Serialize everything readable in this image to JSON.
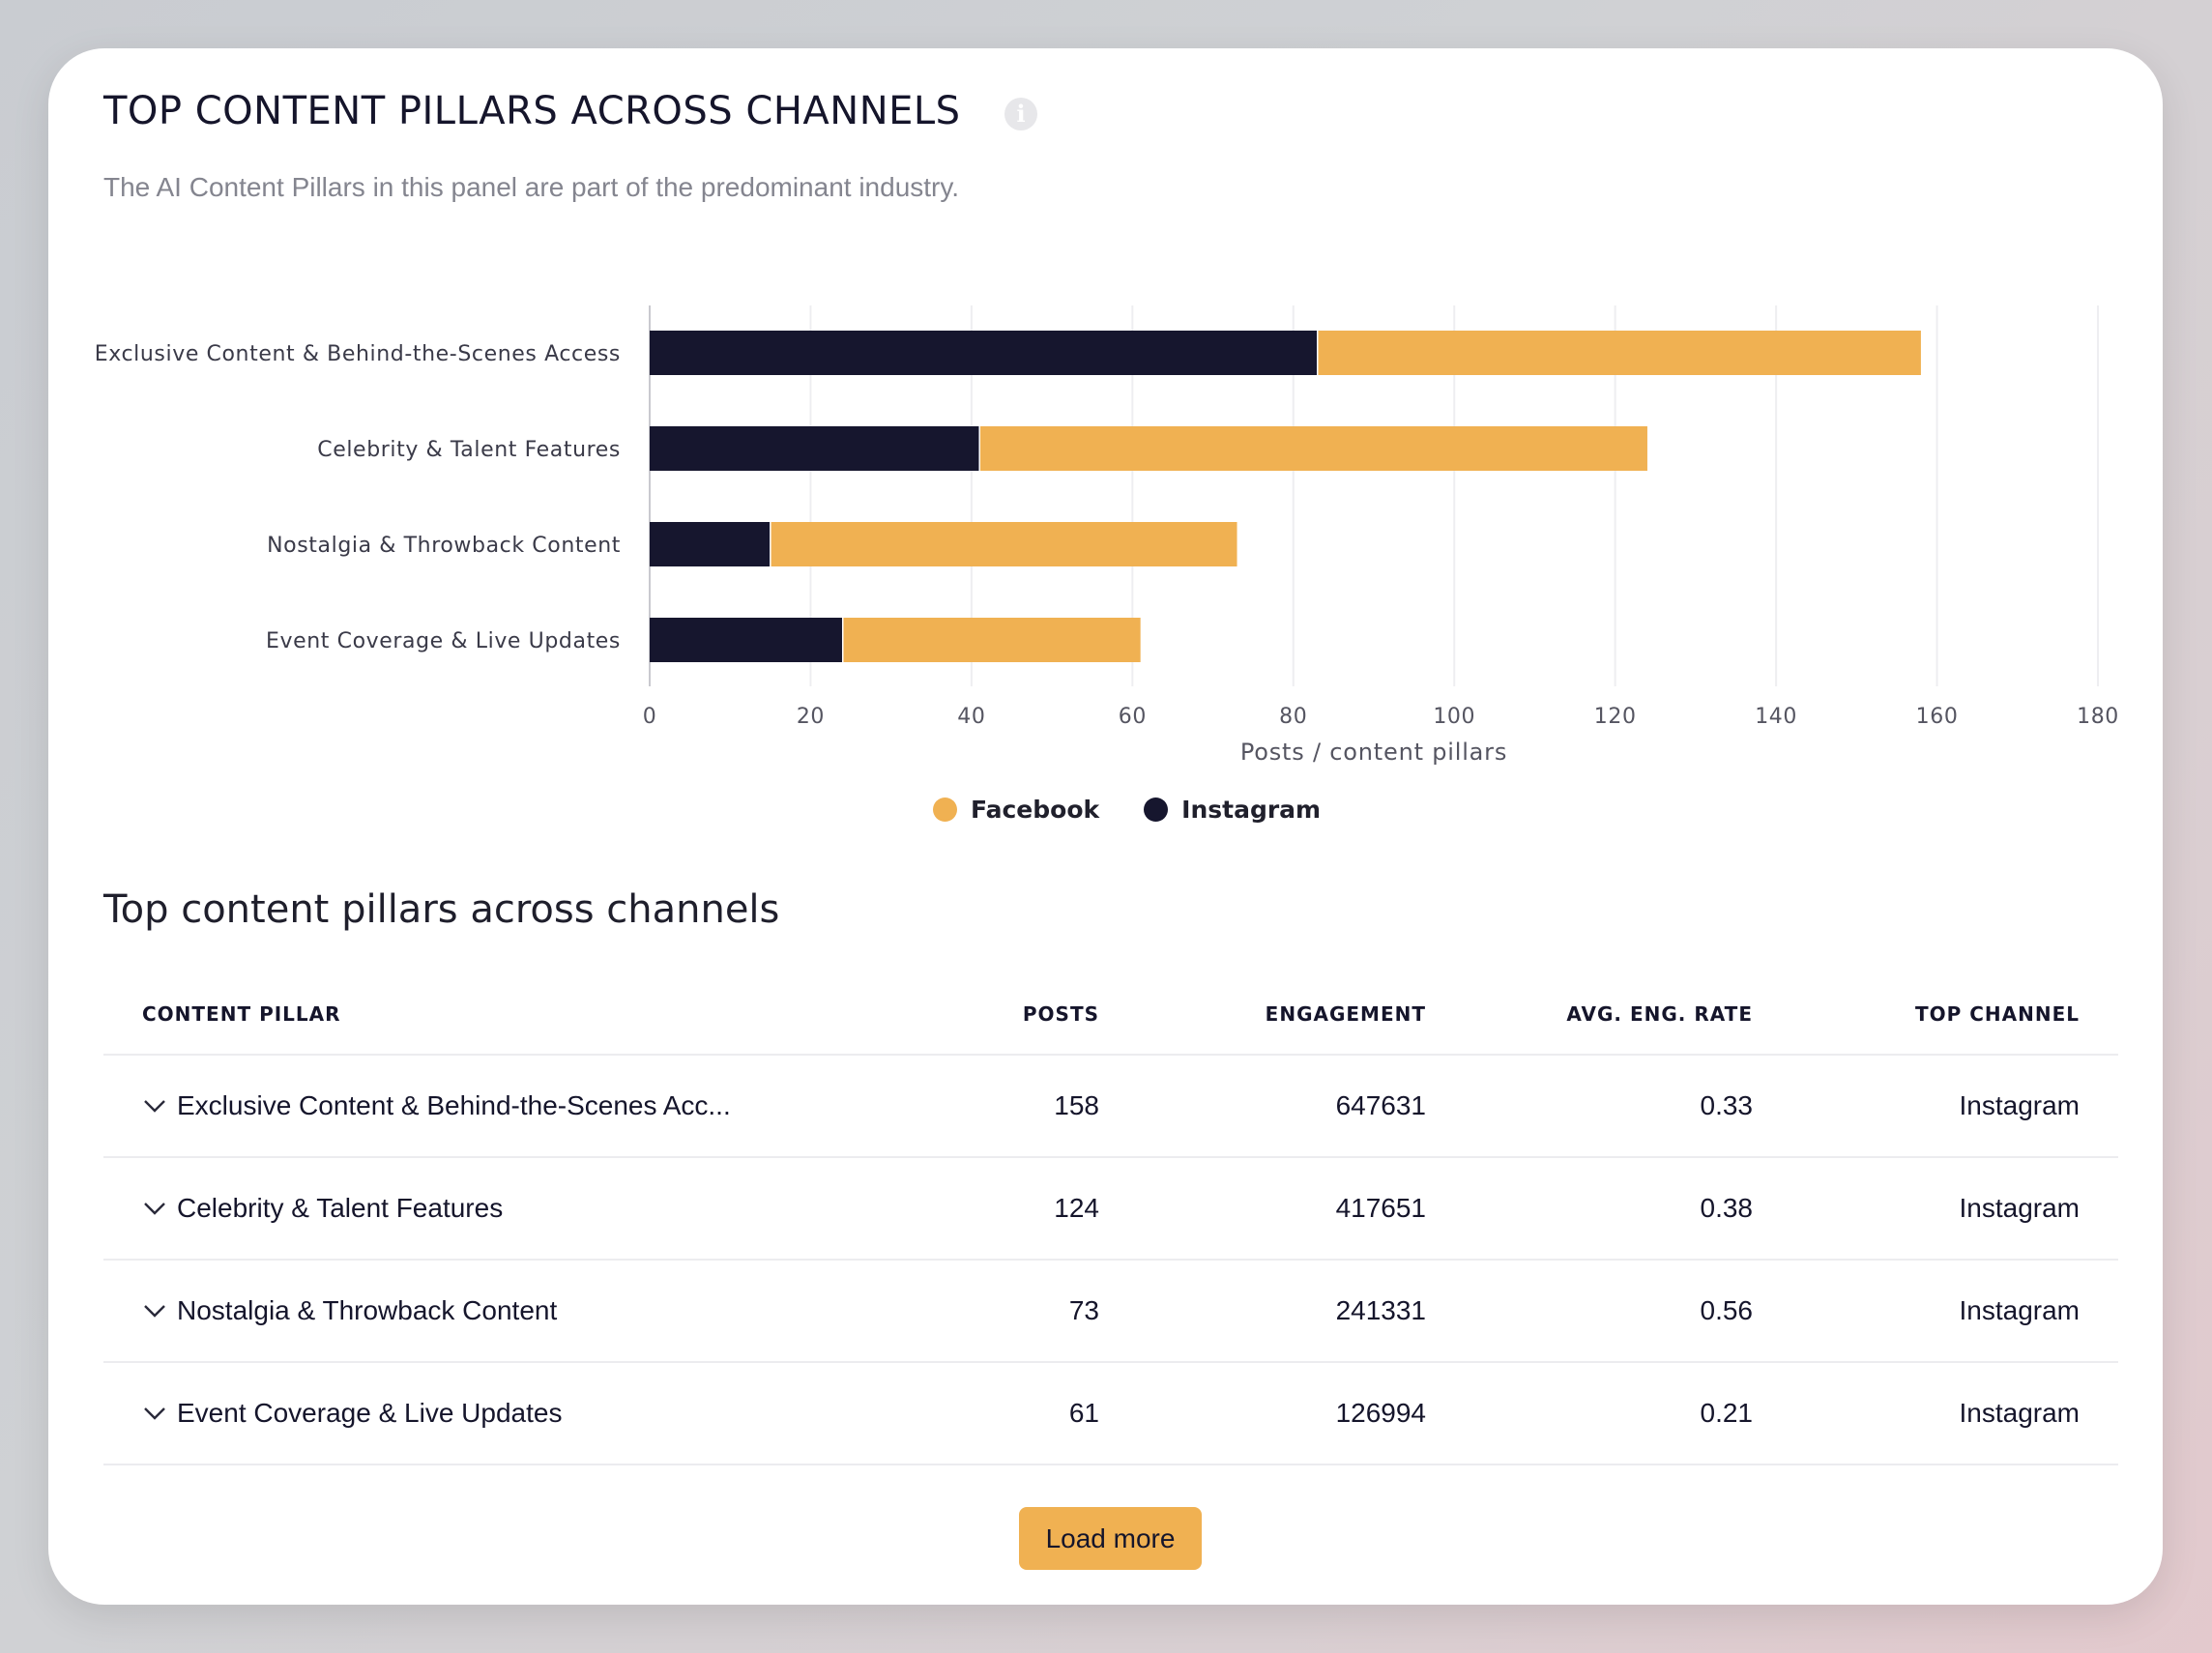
{
  "panel": {
    "title": "TOP CONTENT PILLARS ACROSS CHANNELS",
    "info_icon": "info-icon",
    "subtitle": "The AI Content Pillars in this panel are part of the predominant industry."
  },
  "chart_data": {
    "type": "bar",
    "orientation": "horizontal",
    "stacked": true,
    "categories": [
      "Exclusive Content & Behind-the-Scenes Access",
      "Celebrity & Talent Features",
      "Nostalgia & Throwback Content",
      "Event Coverage & Live Updates"
    ],
    "series": [
      {
        "name": "Instagram",
        "color": "#16162e",
        "values": [
          83,
          41,
          15,
          24
        ]
      },
      {
        "name": "Facebook",
        "color": "#f0b152",
        "values": [
          75,
          83,
          58,
          37
        ]
      }
    ],
    "xlabel": "Posts / content pillars",
    "xlim": [
      0,
      180
    ],
    "xticks": [
      0,
      20,
      40,
      60,
      80,
      100,
      120,
      140,
      160,
      180
    ],
    "grid": true,
    "legend": {
      "position": "bottom",
      "items": [
        {
          "label": "Facebook",
          "color": "#f0b152"
        },
        {
          "label": "Instagram",
          "color": "#16162e"
        }
      ]
    }
  },
  "table": {
    "title": "Top content pillars across channels",
    "headers": {
      "pillar": "CONTENT PILLAR",
      "posts": "POSTS",
      "engagement": "ENGAGEMENT",
      "rate": "AVG. ENG. RATE",
      "channel": "TOP CHANNEL"
    },
    "rows": [
      {
        "pillar": "Exclusive Content & Behind-the-Scenes Acc...",
        "posts": "158",
        "engagement": "647631",
        "rate": "0.33",
        "channel": "Instagram"
      },
      {
        "pillar": "Celebrity & Talent Features",
        "posts": "124",
        "engagement": "417651",
        "rate": "0.38",
        "channel": "Instagram"
      },
      {
        "pillar": "Nostalgia & Throwback Content",
        "posts": "73",
        "engagement": "241331",
        "rate": "0.56",
        "channel": "Instagram"
      },
      {
        "pillar": "Event Coverage & Live Updates",
        "posts": "61",
        "engagement": "126994",
        "rate": "0.21",
        "channel": "Instagram"
      }
    ],
    "load_more_label": "Load more"
  }
}
